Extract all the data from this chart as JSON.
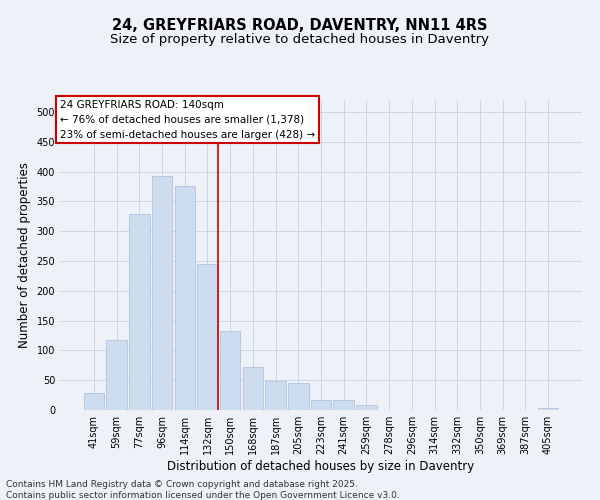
{
  "title": "24, GREYFRIARS ROAD, DAVENTRY, NN11 4RS",
  "subtitle": "Size of property relative to detached houses in Daventry",
  "xlabel": "Distribution of detached houses by size in Daventry",
  "ylabel": "Number of detached properties",
  "categories": [
    "41sqm",
    "59sqm",
    "77sqm",
    "96sqm",
    "114sqm",
    "132sqm",
    "150sqm",
    "168sqm",
    "187sqm",
    "205sqm",
    "223sqm",
    "241sqm",
    "259sqm",
    "278sqm",
    "296sqm",
    "314sqm",
    "332sqm",
    "350sqm",
    "369sqm",
    "387sqm",
    "405sqm"
  ],
  "values": [
    28,
    118,
    328,
    393,
    375,
    245,
    132,
    72,
    48,
    45,
    17,
    17,
    9,
    0,
    0,
    0,
    0,
    0,
    0,
    0,
    4
  ],
  "bar_color": "#ccddf0",
  "bar_edge_color": "#aabbd8",
  "property_label": "24 GREYFRIARS ROAD: 140sqm",
  "annotation_line1": "← 76% of detached houses are smaller (1,378)",
  "annotation_line2": "23% of semi-detached houses are larger (428) →",
  "annotation_box_color": "#ffffff",
  "annotation_box_edge_color": "#cc0000",
  "vline_color": "#cc0000",
  "grid_color": "#c8d8e8",
  "background_color": "#eef2f8",
  "footer_line1": "Contains HM Land Registry data © Crown copyright and database right 2025.",
  "footer_line2": "Contains public sector information licensed under the Open Government Licence v3.0.",
  "ylim": [
    0,
    520
  ],
  "yticks": [
    0,
    50,
    100,
    150,
    200,
    250,
    300,
    350,
    400,
    450,
    500
  ],
  "vline_index": 5,
  "title_fontsize": 10.5,
  "subtitle_fontsize": 9.5,
  "axis_label_fontsize": 8.5,
  "tick_fontsize": 7,
  "annotation_fontsize": 7.5,
  "footer_fontsize": 6.5
}
